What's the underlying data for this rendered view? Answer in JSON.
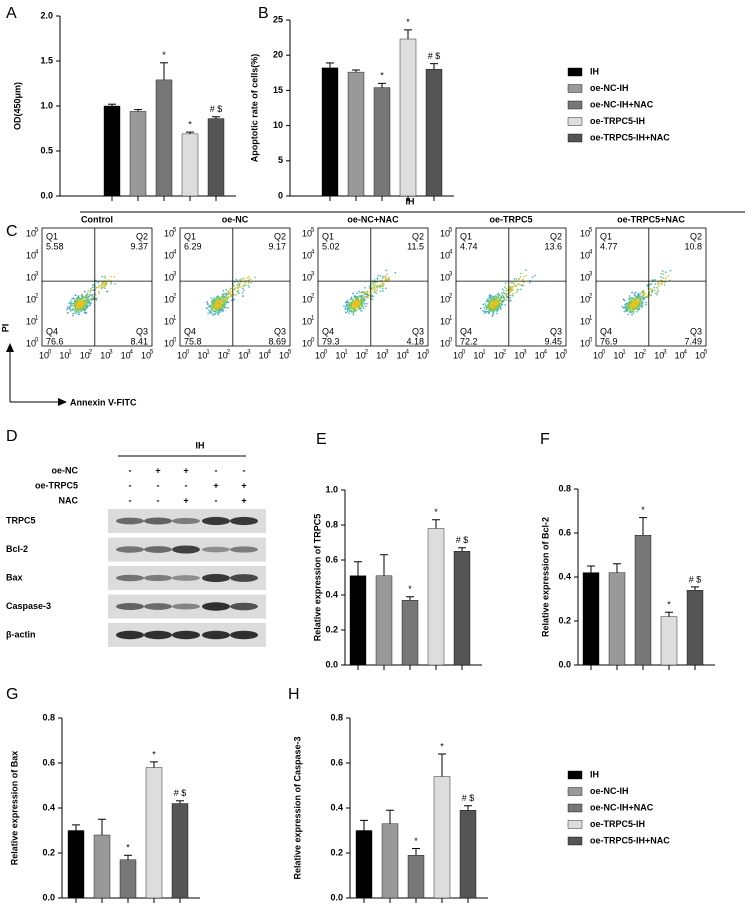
{
  "chart_data": [
    {
      "type": "bar",
      "panel": "A",
      "y_label": "OD(450μm)",
      "ylim": [
        0,
        2.0
      ],
      "yticks": [
        {
          "value": 0,
          "label": "0.0"
        },
        0.5,
        {
          "value": 1,
          "label": "1.0"
        },
        1.5,
        {
          "value": 2,
          "label": "2.0"
        }
      ],
      "values": [
        1.0,
        0.94,
        1.29,
        0.69,
        0.86
      ],
      "errors": [
        0.02,
        0.02,
        0.19,
        0.02,
        0.02
      ],
      "annotations": [
        null,
        null,
        "*",
        "*",
        "# $"
      ],
      "colors": [
        "#000000",
        "#999999",
        "#777777",
        "#dddddd",
        "#555555"
      ]
    },
    {
      "type": "bar",
      "panel": "B",
      "y_label": "Apoptotic rate of cells(%)",
      "ylim": [
        0,
        25
      ],
      "yticks": [
        0,
        5,
        10,
        15,
        20,
        25
      ],
      "values": [
        18.2,
        17.6,
        15.4,
        22.3,
        18.0
      ],
      "errors": [
        0.7,
        0.3,
        0.6,
        1.3,
        0.8
      ],
      "annotations": [
        null,
        null,
        "*",
        "*",
        "# $"
      ],
      "colors": [
        "#000000",
        "#999999",
        "#777777",
        "#dddddd",
        "#555555"
      ]
    },
    {
      "type": "bar",
      "panel": "E",
      "y_label": "Relative expression of TRPC5",
      "ylim": [
        0,
        1.0
      ],
      "yticks": [
        {
          "value": 0,
          "label": "0.0"
        },
        0.2,
        0.4,
        0.6,
        0.8,
        {
          "value": 1,
          "label": "1.0"
        }
      ],
      "values": [
        0.51,
        0.51,
        0.37,
        0.78,
        0.65
      ],
      "errors": [
        0.08,
        0.12,
        0.02,
        0.05,
        0.02
      ],
      "annotations": [
        null,
        null,
        "*",
        "*",
        "# $"
      ],
      "colors": [
        "#000000",
        "#999999",
        "#777777",
        "#dddddd",
        "#555555"
      ]
    },
    {
      "type": "bar",
      "panel": "F",
      "y_label": "Relative expression of Bcl-2",
      "ylim": [
        0,
        0.8
      ],
      "yticks": [
        {
          "value": 0,
          "label": "0.0"
        },
        0.2,
        0.4,
        0.6,
        0.8
      ],
      "values": [
        0.42,
        0.42,
        0.59,
        0.22,
        0.34
      ],
      "errors": [
        0.03,
        0.04,
        0.08,
        0.02,
        0.015
      ],
      "annotations": [
        null,
        null,
        "*",
        "*",
        "# $"
      ],
      "colors": [
        "#000000",
        "#999999",
        "#777777",
        "#dddddd",
        "#555555"
      ]
    },
    {
      "type": "bar",
      "panel": "G",
      "y_label": "Relative expression of Bax",
      "ylim": [
        0,
        0.8
      ],
      "yticks": [
        {
          "value": 0,
          "label": "0.0"
        },
        0.2,
        0.4,
        0.6,
        0.8
      ],
      "values": [
        0.3,
        0.28,
        0.17,
        0.58,
        0.42
      ],
      "errors": [
        0.025,
        0.07,
        0.02,
        0.025,
        0.012
      ],
      "annotations": [
        null,
        null,
        "*",
        "*",
        "# $"
      ],
      "colors": [
        "#000000",
        "#999999",
        "#777777",
        "#dddddd",
        "#555555"
      ]
    },
    {
      "type": "bar",
      "panel": "H",
      "y_label": "Relative expression of Caspase-3",
      "ylim": [
        0,
        0.8
      ],
      "yticks": [
        {
          "value": 0,
          "label": "0.0"
        },
        0.2,
        0.4,
        0.6,
        0.8
      ],
      "values": [
        0.3,
        0.33,
        0.19,
        0.54,
        0.39
      ],
      "errors": [
        0.045,
        0.06,
        0.03,
        0.1,
        0.02
      ],
      "annotations": [
        null,
        null,
        "*",
        "*",
        "# $"
      ],
      "colors": [
        "#000000",
        "#999999",
        "#777777",
        "#dddddd",
        "#555555"
      ]
    }
  ],
  "legends": [
    {
      "entries": [
        "IH",
        "oe-NC-IH",
        "oe-NC-IH+NAC",
        "oe-TRPC5-IH",
        "oe-TRPC5-IH+NAC"
      ],
      "colors": [
        "#000000",
        "#999999",
        "#777777",
        "#dddddd",
        "#555555"
      ]
    },
    {
      "entries": [
        "IH",
        "oe-NC-IH",
        "oe-NC-IH+NAC",
        "oe-TRPC5-IH",
        "oe-TRPC5-IH+NAC"
      ],
      "colors": [
        "#000000",
        "#999999",
        "#777777",
        "#dddddd",
        "#555555"
      ]
    }
  ],
  "flow_cytometry": {
    "panel": "C",
    "group_label": "IH",
    "x_label": "Annexin V-FITC",
    "y_label": "PI",
    "axis_base": "10",
    "axis_exponents": [
      "0",
      "1",
      "2",
      "3",
      "4",
      "5"
    ],
    "quadrant_names": [
      "Q1",
      "Q2",
      "Q3",
      "Q4"
    ],
    "plots": [
      {
        "title": "Control",
        "quadrants": [
          5.58,
          9.37,
          8.41,
          76.6
        ]
      },
      {
        "title": "oe-NC",
        "quadrants": [
          6.29,
          9.17,
          8.69,
          75.8
        ]
      },
      {
        "title": "oe-NC+NAC",
        "quadrants": [
          5.02,
          11.5,
          4.18,
          79.3
        ]
      },
      {
        "title": "oe-TRPC5",
        "quadrants": [
          4.74,
          13.6,
          9.45,
          72.2
        ]
      },
      {
        "title": "oe-TRPC5+NAC",
        "quadrants": [
          4.77,
          10.8,
          7.49,
          76.9
        ]
      }
    ]
  },
  "western_blot": {
    "panel": "D",
    "group_label": "IH",
    "conditions": [
      {
        "label": "oe-NC",
        "signs": [
          "-",
          "+",
          "+",
          "-",
          "-"
        ]
      },
      {
        "label": "oe-TRPC5",
        "signs": [
          "-",
          "-",
          "-",
          "+",
          "+"
        ]
      },
      {
        "label": "NAC",
        "signs": [
          "-",
          "-",
          "+",
          "-",
          "+"
        ]
      }
    ],
    "proteins": [
      "TRPC5",
      "Bcl-2",
      "Bax",
      "Caspase-3",
      "β-actin"
    ]
  }
}
